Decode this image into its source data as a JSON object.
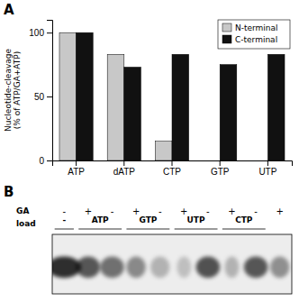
{
  "chart_data": [
    {
      "type": "bar",
      "title": "A",
      "categories": [
        "ATP",
        "dATP",
        "CTP",
        "GTP",
        "UTP"
      ],
      "series": [
        {
          "name": "N-terminal",
          "color": "#c8c8c8",
          "values": [
            100,
            83,
            15,
            0,
            0
          ]
        },
        {
          "name": "C-terminal",
          "color": "#111111",
          "values": [
            100,
            73,
            83,
            75,
            83
          ]
        }
      ],
      "ylabel": "Nucleotide-cleavage\n(% of ATP/GA+ATP)",
      "ylim": [
        0,
        110
      ],
      "yticks": [
        0,
        50,
        100
      ],
      "legend": "upper right"
    },
    {
      "type": "gel",
      "title": "B",
      "annotations": [
        "GA",
        "load"
      ],
      "categories": [
        "-",
        "+",
        "-",
        "+",
        "-",
        "+",
        "-",
        "+",
        "-",
        "+"
      ],
      "group_labels": [
        "-",
        "ATP",
        "GTP",
        "UTP",
        "CTP"
      ],
      "values": [
        0.92,
        0.72,
        0.6,
        0.48,
        0.28,
        0.22,
        0.75,
        0.28,
        0.72,
        0.45
      ],
      "band_widths": [
        0.07,
        0.05,
        0.05,
        0.04,
        0.04,
        0.03,
        0.05,
        0.03,
        0.05,
        0.04
      ]
    }
  ]
}
